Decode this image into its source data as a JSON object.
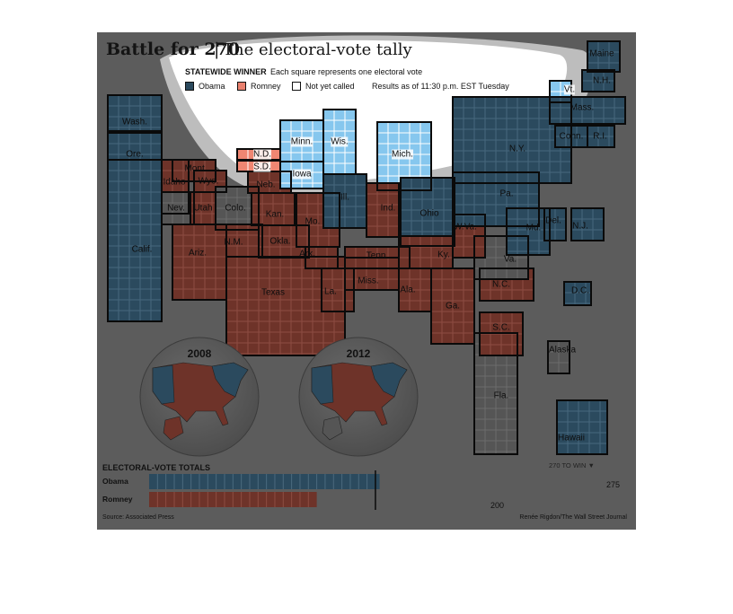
{
  "title": {
    "main": "Battle for 270",
    "separator": "|",
    "sub": "The electoral-vote tally"
  },
  "legend": {
    "heading": "STATEWIDE WINNER",
    "note": "Each square represents one electoral vote",
    "items": [
      {
        "label": "Obama",
        "color": "#2b4a5e"
      },
      {
        "label": "Romney",
        "color": "#e9806e"
      },
      {
        "label": "Not yet called",
        "color": "#ffffff"
      }
    ],
    "results_as_of": "Results as of 11:30 p.m. EST Tuesday"
  },
  "colors": {
    "obama": "#2b4a5e",
    "romney": "#6e3329",
    "uncalled": "#555555",
    "highlight_blue": "#86c7ee",
    "highlight_red": "#ef8672",
    "background": "#5c5c5c"
  },
  "state_labels": [
    "Wash.",
    "Ore.",
    "Calif.",
    "Idaho",
    "Mont.",
    "Wyo.",
    "Nev.",
    "Utah",
    "Colo.",
    "Ariz.",
    "N.M.",
    "N.D.",
    "S.D.",
    "Neb.",
    "Kan.",
    "Okla.",
    "Texas",
    "Minn.",
    "Iowa",
    "Mo.",
    "Ark.",
    "La.",
    "Wis.",
    "Ill.",
    "Miss.",
    "Mich.",
    "Ind.",
    "Tenn.",
    "Ala.",
    "Ohio",
    "Ky.",
    "Ga.",
    "Fla.",
    "S.C.",
    "N.C.",
    "Va.",
    "W.Va.",
    "Pa.",
    "N.Y.",
    "Vt.",
    "N.H.",
    "Maine",
    "Mass.",
    "Conn.",
    "R.I.",
    "N.J.",
    "Del.",
    "Md.",
    "D.C.",
    "Alaska",
    "Hawaii"
  ],
  "globes": {
    "left_year": "2008",
    "right_year": "2012"
  },
  "totals": {
    "heading": "ELECTORAL-VOTE TOTALS",
    "win_threshold": 270,
    "win_label": "270 TO WIN ▼",
    "max": 538,
    "obama": {
      "label": "Obama",
      "votes": 275,
      "value_label": "275"
    },
    "romney": {
      "label": "Romney",
      "votes": 200,
      "value_label": "200"
    }
  },
  "footer": {
    "source": "Source: Associated Press",
    "credit": "Renée Rigdon/The Wall Street Journal"
  }
}
